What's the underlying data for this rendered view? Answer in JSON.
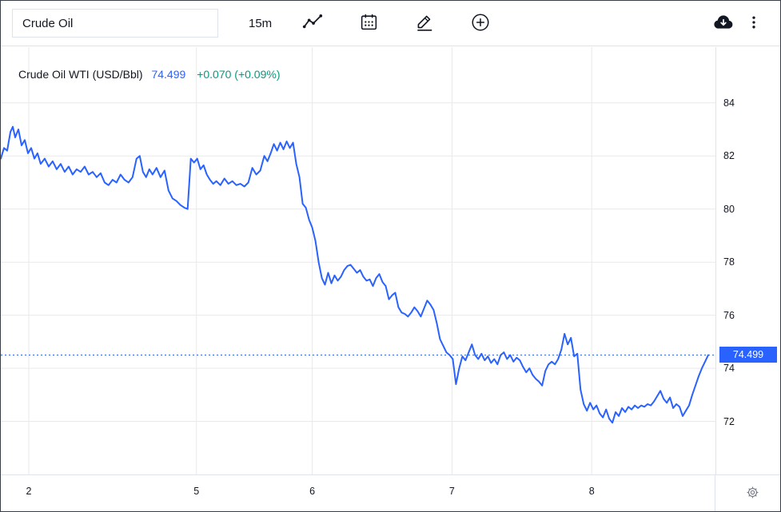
{
  "toolbar": {
    "symbol_input": "Crude Oil",
    "interval": "15m"
  },
  "legend": {
    "title": "Crude Oil WTI (USD/Bbl)",
    "price": "74.499",
    "change": "+0.070 (+0.09%)",
    "title_color": "#131722",
    "price_color": "#2962ff",
    "change_color": "#089981"
  },
  "price_axis": {
    "current_label": "74.499",
    "badge_color": "#2962ff"
  },
  "chart_data": {
    "type": "line",
    "title": "Crude Oil WTI (USD/Bbl)",
    "interval": "15m",
    "last_value": 74.499,
    "last_label": "74.499",
    "change_text": "+0.070 (+0.09%)",
    "line_color": "#2962ff",
    "grid_color": "#e9e9ec",
    "y_ticks": [
      84,
      82,
      80,
      78,
      76,
      74,
      72
    ],
    "y_range": [
      70.0,
      86.1
    ],
    "x_domain": [
      0,
      895
    ],
    "x_ticks": [
      {
        "label": "2",
        "x": 35
      },
      {
        "label": "5",
        "x": 245
      },
      {
        "label": "6",
        "x": 390
      },
      {
        "label": "7",
        "x": 565
      },
      {
        "label": "8",
        "x": 740
      }
    ],
    "points": [
      [
        0,
        81.9
      ],
      [
        4,
        82.3
      ],
      [
        8,
        82.2
      ],
      [
        12,
        82.9
      ],
      [
        15,
        83.1
      ],
      [
        18,
        82.7
      ],
      [
        22,
        83.0
      ],
      [
        26,
        82.4
      ],
      [
        30,
        82.6
      ],
      [
        34,
        82.1
      ],
      [
        38,
        82.3
      ],
      [
        42,
        81.9
      ],
      [
        46,
        82.1
      ],
      [
        50,
        81.7
      ],
      [
        55,
        81.9
      ],
      [
        60,
        81.6
      ],
      [
        65,
        81.8
      ],
      [
        70,
        81.5
      ],
      [
        75,
        81.7
      ],
      [
        80,
        81.4
      ],
      [
        85,
        81.6
      ],
      [
        90,
        81.3
      ],
      [
        95,
        81.5
      ],
      [
        100,
        81.4
      ],
      [
        105,
        81.6
      ],
      [
        110,
        81.3
      ],
      [
        115,
        81.4
      ],
      [
        120,
        81.2
      ],
      [
        125,
        81.35
      ],
      [
        130,
        81.0
      ],
      [
        135,
        80.9
      ],
      [
        140,
        81.1
      ],
      [
        145,
        81.0
      ],
      [
        150,
        81.3
      ],
      [
        155,
        81.1
      ],
      [
        160,
        81.0
      ],
      [
        165,
        81.2
      ],
      [
        170,
        81.9
      ],
      [
        174,
        82.0
      ],
      [
        178,
        81.4
      ],
      [
        182,
        81.2
      ],
      [
        186,
        81.5
      ],
      [
        190,
        81.3
      ],
      [
        195,
        81.55
      ],
      [
        200,
        81.2
      ],
      [
        205,
        81.45
      ],
      [
        210,
        80.7
      ],
      [
        215,
        80.4
      ],
      [
        220,
        80.3
      ],
      [
        225,
        80.15
      ],
      [
        230,
        80.05
      ],
      [
        234,
        80.0
      ],
      [
        238,
        81.9
      ],
      [
        242,
        81.75
      ],
      [
        246,
        81.9
      ],
      [
        250,
        81.5
      ],
      [
        254,
        81.65
      ],
      [
        258,
        81.3
      ],
      [
        262,
        81.1
      ],
      [
        266,
        80.95
      ],
      [
        270,
        81.05
      ],
      [
        275,
        80.9
      ],
      [
        280,
        81.15
      ],
      [
        285,
        80.95
      ],
      [
        290,
        81.05
      ],
      [
        295,
        80.9
      ],
      [
        300,
        80.95
      ],
      [
        305,
        80.85
      ],
      [
        310,
        81.0
      ],
      [
        315,
        81.55
      ],
      [
        320,
        81.3
      ],
      [
        325,
        81.45
      ],
      [
        330,
        82.0
      ],
      [
        334,
        81.8
      ],
      [
        338,
        82.1
      ],
      [
        342,
        82.45
      ],
      [
        346,
        82.2
      ],
      [
        350,
        82.5
      ],
      [
        354,
        82.25
      ],
      [
        358,
        82.55
      ],
      [
        362,
        82.3
      ],
      [
        366,
        82.5
      ],
      [
        370,
        81.7
      ],
      [
        374,
        81.2
      ],
      [
        378,
        80.2
      ],
      [
        382,
        80.05
      ],
      [
        386,
        79.6
      ],
      [
        390,
        79.3
      ],
      [
        394,
        78.8
      ],
      [
        398,
        78.0
      ],
      [
        402,
        77.4
      ],
      [
        406,
        77.15
      ],
      [
        410,
        77.6
      ],
      [
        414,
        77.2
      ],
      [
        418,
        77.5
      ],
      [
        422,
        77.3
      ],
      [
        426,
        77.45
      ],
      [
        430,
        77.7
      ],
      [
        434,
        77.85
      ],
      [
        438,
        77.9
      ],
      [
        442,
        77.75
      ],
      [
        446,
        77.6
      ],
      [
        450,
        77.7
      ],
      [
        454,
        77.45
      ],
      [
        458,
        77.3
      ],
      [
        462,
        77.35
      ],
      [
        466,
        77.1
      ],
      [
        470,
        77.4
      ],
      [
        474,
        77.55
      ],
      [
        478,
        77.25
      ],
      [
        482,
        77.1
      ],
      [
        486,
        76.6
      ],
      [
        490,
        76.75
      ],
      [
        494,
        76.85
      ],
      [
        498,
        76.3
      ],
      [
        502,
        76.1
      ],
      [
        506,
        76.05
      ],
      [
        510,
        75.95
      ],
      [
        514,
        76.1
      ],
      [
        518,
        76.3
      ],
      [
        522,
        76.15
      ],
      [
        526,
        75.95
      ],
      [
        530,
        76.25
      ],
      [
        534,
        76.55
      ],
      [
        538,
        76.4
      ],
      [
        542,
        76.2
      ],
      [
        546,
        75.7
      ],
      [
        550,
        75.1
      ],
      [
        554,
        74.85
      ],
      [
        558,
        74.6
      ],
      [
        562,
        74.5
      ],
      [
        566,
        74.35
      ],
      [
        570,
        73.4
      ],
      [
        574,
        74.0
      ],
      [
        578,
        74.45
      ],
      [
        582,
        74.3
      ],
      [
        586,
        74.6
      ],
      [
        590,
        74.9
      ],
      [
        594,
        74.5
      ],
      [
        598,
        74.35
      ],
      [
        602,
        74.55
      ],
      [
        606,
        74.3
      ],
      [
        610,
        74.45
      ],
      [
        614,
        74.2
      ],
      [
        618,
        74.35
      ],
      [
        622,
        74.15
      ],
      [
        626,
        74.5
      ],
      [
        630,
        74.6
      ],
      [
        634,
        74.35
      ],
      [
        638,
        74.5
      ],
      [
        642,
        74.25
      ],
      [
        646,
        74.4
      ],
      [
        650,
        74.3
      ],
      [
        654,
        74.05
      ],
      [
        658,
        73.85
      ],
      [
        662,
        74.0
      ],
      [
        666,
        73.75
      ],
      [
        670,
        73.6
      ],
      [
        674,
        73.5
      ],
      [
        678,
        73.35
      ],
      [
        682,
        73.9
      ],
      [
        686,
        74.15
      ],
      [
        690,
        74.25
      ],
      [
        694,
        74.15
      ],
      [
        698,
        74.35
      ],
      [
        702,
        74.7
      ],
      [
        706,
        75.3
      ],
      [
        710,
        74.9
      ],
      [
        714,
        75.15
      ],
      [
        718,
        74.45
      ],
      [
        722,
        74.55
      ],
      [
        726,
        73.2
      ],
      [
        730,
        72.65
      ],
      [
        734,
        72.4
      ],
      [
        738,
        72.7
      ],
      [
        742,
        72.45
      ],
      [
        746,
        72.6
      ],
      [
        750,
        72.3
      ],
      [
        754,
        72.15
      ],
      [
        758,
        72.45
      ],
      [
        762,
        72.1
      ],
      [
        766,
        71.95
      ],
      [
        770,
        72.35
      ],
      [
        774,
        72.2
      ],
      [
        778,
        72.5
      ],
      [
        782,
        72.35
      ],
      [
        786,
        72.55
      ],
      [
        790,
        72.45
      ],
      [
        794,
        72.6
      ],
      [
        798,
        72.5
      ],
      [
        802,
        72.6
      ],
      [
        806,
        72.55
      ],
      [
        810,
        72.65
      ],
      [
        814,
        72.6
      ],
      [
        818,
        72.75
      ],
      [
        822,
        72.95
      ],
      [
        826,
        73.15
      ],
      [
        830,
        72.85
      ],
      [
        834,
        72.7
      ],
      [
        838,
        72.9
      ],
      [
        842,
        72.5
      ],
      [
        846,
        72.65
      ],
      [
        850,
        72.55
      ],
      [
        854,
        72.2
      ],
      [
        858,
        72.4
      ],
      [
        862,
        72.6
      ],
      [
        866,
        73.0
      ],
      [
        870,
        73.35
      ],
      [
        874,
        73.7
      ],
      [
        878,
        74.0
      ],
      [
        882,
        74.25
      ],
      [
        886,
        74.499
      ]
    ]
  }
}
